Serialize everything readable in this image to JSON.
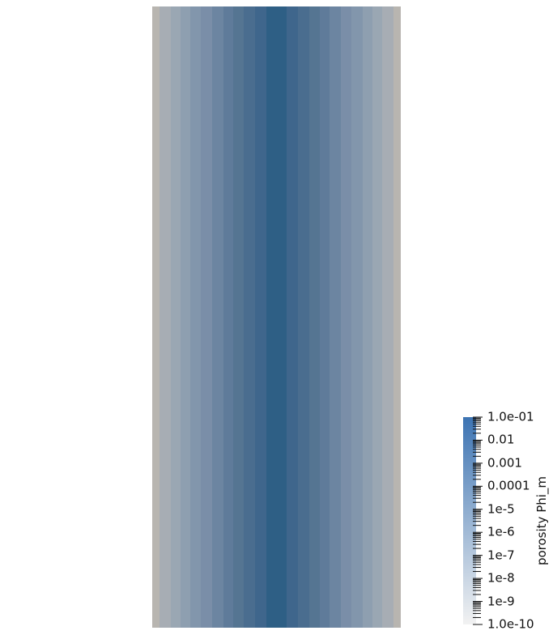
{
  "view": {
    "background": "#ffffff",
    "field_name": "porosity Phi_m"
  },
  "domain": {
    "profile": "symmetric",
    "stripe_colors": [
      "#b8b5b0",
      "#a7adb4",
      "#9aa7b3",
      "#8e9fb0",
      "#8296ac",
      "#7a8ea8",
      "#6c85a1",
      "#5f7b9a",
      "#557592",
      "#4a6d8f",
      "#3f668c",
      "#2e5f85",
      "#3f668c",
      "#4a6d8f",
      "#557592",
      "#5f7b9a",
      "#6c85a1",
      "#7a8ea8",
      "#8296ac",
      "#8e9fb0",
      "#9aa7b3",
      "#a7adb4",
      "#b8b5b0"
    ],
    "stripe_weights": [
      12,
      18,
      16,
      16,
      18,
      18,
      18,
      16,
      18,
      18,
      18,
      34,
      18,
      18,
      18,
      16,
      18,
      18,
      18,
      16,
      16,
      18,
      12
    ]
  },
  "colorbar": {
    "title": "porosity Phi_m",
    "scale": "log",
    "range": [
      1e-10,
      0.1
    ],
    "color_low": "#f2f2f2",
    "color_high": "#3d74b3",
    "tick_labels": [
      {
        "text": "1.0e-01",
        "value": 0.1
      },
      {
        "text": "0.01",
        "value": 0.01
      },
      {
        "text": "0.001",
        "value": 0.001
      },
      {
        "text": "0.0001",
        "value": 0.0001
      },
      {
        "text": "1e-5",
        "value": 1e-05
      },
      {
        "text": "1e-6",
        "value": 1e-06
      },
      {
        "text": "1e-7",
        "value": 1e-07
      },
      {
        "text": "1e-8",
        "value": 1e-08
      },
      {
        "text": "1e-9",
        "value": 1e-09
      },
      {
        "text": "1.0e-10",
        "value": 1e-10
      }
    ]
  }
}
